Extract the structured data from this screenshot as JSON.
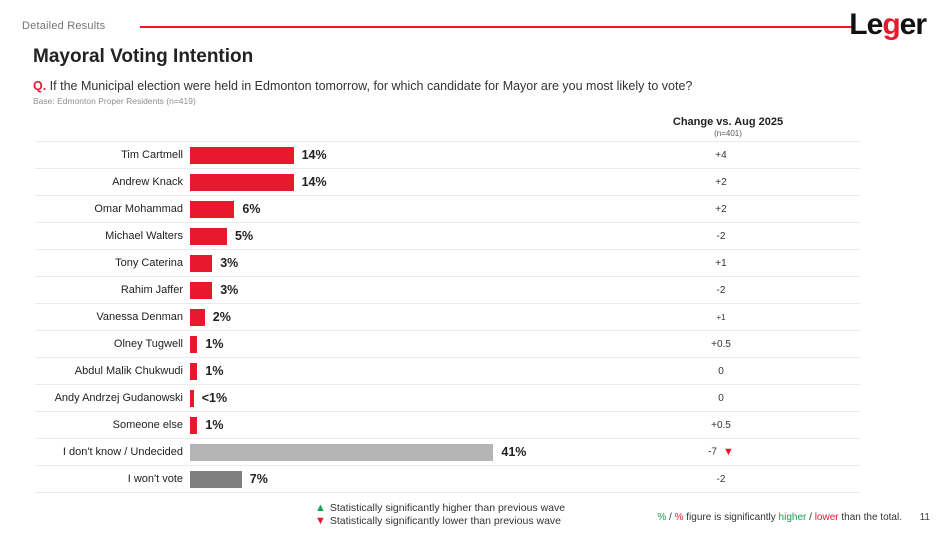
{
  "page": {
    "eyebrow": "Detailed Results",
    "page_number": "11",
    "logo": {
      "part1": "Le",
      "part2": "g",
      "part3": "er"
    }
  },
  "header": {
    "title": "Mayoral Voting Intention",
    "q_label": "Q.",
    "question": " If the Municipal election were held in Edmonton tomorrow, for which candidate for Mayor are you most likely to vote?",
    "base_note": "Base: Edmonton Proper Residents (n=419)"
  },
  "change_column": {
    "title": "Change vs. Aug 2025",
    "subtitle": "(n=401)"
  },
  "colors": {
    "red": "#e8192c",
    "gray_light": "#b5b5b5",
    "gray_dark": "#7f7f7f",
    "green": "#0fa34d",
    "accent_line": "#e8192c"
  },
  "chart_data": {
    "type": "bar",
    "orientation": "horizontal",
    "unit": "percent",
    "xlim": [
      0,
      45
    ],
    "title": "Mayoral Voting Intention",
    "change_column_label": "Change vs. Aug 2025 (n=401)",
    "rows": [
      {
        "label": "Tim Cartmell",
        "value": 14,
        "value_label": "14%",
        "change": "+4",
        "color": "red"
      },
      {
        "label": "Andrew Knack",
        "value": 14,
        "value_label": "14%",
        "change": "+2",
        "color": "red"
      },
      {
        "label": "Omar Mohammad",
        "value": 6,
        "value_label": "6%",
        "change": "+2",
        "color": "red"
      },
      {
        "label": "Michael Walters",
        "value": 5,
        "value_label": "5%",
        "change": "-2",
        "color": "red"
      },
      {
        "label": "Tony Caterina",
        "value": 3,
        "value_label": "3%",
        "change": "+1",
        "color": "red"
      },
      {
        "label": "Rahim Jaffer",
        "value": 3,
        "value_label": "3%",
        "change": "-2",
        "color": "red"
      },
      {
        "label": "Vanessa Denman",
        "value": 2,
        "value_label": "2%",
        "change": "+1",
        "color": "red",
        "change_small": true
      },
      {
        "label": "Olney Tugwell",
        "value": 1,
        "value_label": "1%",
        "change": "+0.5",
        "color": "red"
      },
      {
        "label": "Abdul Malik Chukwudi",
        "value": 1,
        "value_label": "1%",
        "change": "0",
        "color": "red"
      },
      {
        "label": "Andy Andrzej Gudanowski",
        "value": 0.5,
        "value_label": "<1%",
        "change": "0",
        "color": "red"
      },
      {
        "label": "Someone else",
        "value": 1,
        "value_label": "1%",
        "change": "+0.5",
        "color": "red"
      },
      {
        "label": "I don't know / Undecided",
        "value": 41,
        "value_label": "41%",
        "change": "-7",
        "color": "gray_light",
        "change_marker": "down"
      },
      {
        "label": "I won't vote",
        "value": 7,
        "value_label": "7%",
        "change": "-2",
        "color": "gray_dark"
      }
    ]
  },
  "legend": {
    "higher": "Statistically significantly higher than previous wave",
    "lower": "Statistically significantly lower than previous wave",
    "up_icon": "▲",
    "down_icon": "▼"
  },
  "footnote": {
    "green_pct": "%",
    "slash1": " / ",
    "red_pct": "%",
    "text1": " figure is significantly ",
    "higher": "higher",
    "slash2": " / ",
    "lower": "lower",
    "text2": " than the total."
  }
}
